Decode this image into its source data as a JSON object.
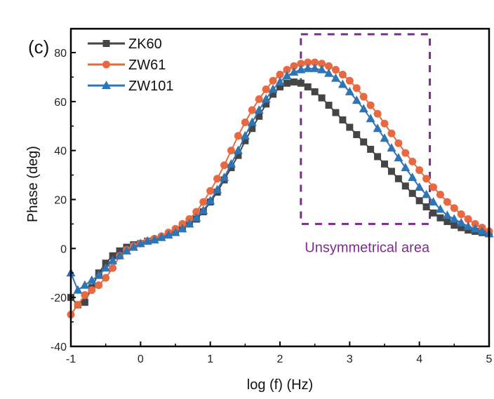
{
  "chart_data": {
    "type": "line",
    "panel_label": "(c)",
    "title": "",
    "xlabel": "log (f) (Hz)",
    "ylabel": "Phase (deg)",
    "xlim": [
      -1,
      5
    ],
    "ylim": [
      -40,
      90
    ],
    "x_ticks": [
      -1,
      0,
      1,
      2,
      3,
      4,
      5
    ],
    "x_tick_labels": [
      "-1",
      "0",
      "1",
      "2",
      "3",
      "4",
      "5"
    ],
    "x_minor_ticks": [
      -0.5,
      0.5,
      1.5,
      2.5,
      3.5,
      4.5
    ],
    "y_ticks": [
      -40,
      -20,
      0,
      20,
      40,
      60,
      80
    ],
    "y_tick_labels": [
      "-40",
      "-20",
      "0",
      "20",
      "40",
      "60",
      "80"
    ],
    "y_minor_ticks": [
      -30,
      -10,
      10,
      30,
      50,
      70
    ],
    "grid": false,
    "legend_position": "top-left",
    "series": [
      {
        "name": "ZK60",
        "color": "#454545",
        "marker": "square",
        "x": [
          -1.0,
          -0.9,
          -0.8,
          -0.7,
          -0.6,
          -0.5,
          -0.4,
          -0.3,
          -0.2,
          -0.1,
          0.0,
          0.1,
          0.2,
          0.3,
          0.4,
          0.5,
          0.6,
          0.7,
          0.8,
          0.9,
          1.0,
          1.1,
          1.2,
          1.3,
          1.4,
          1.5,
          1.6,
          1.7,
          1.8,
          1.9,
          2.0,
          2.1,
          2.2,
          2.3,
          2.4,
          2.5,
          2.6,
          2.7,
          2.8,
          2.9,
          3.0,
          3.1,
          3.2,
          3.3,
          3.4,
          3.5,
          3.6,
          3.7,
          3.8,
          3.9,
          4.0,
          4.1,
          4.2,
          4.3,
          4.4,
          4.5,
          4.6,
          4.7,
          4.8,
          4.9,
          5.0
        ],
        "y": [
          -20,
          -23,
          -22,
          -16,
          -10,
          -6,
          -3,
          -1,
          0.5,
          1.5,
          2,
          3,
          3.5,
          4.5,
          5.5,
          7,
          8.5,
          10,
          12,
          15,
          19,
          23,
          28,
          33,
          38,
          44,
          49,
          54,
          59,
          63,
          66,
          67.5,
          68,
          67.5,
          66,
          64,
          61.5,
          58.5,
          55.5,
          52.5,
          49.5,
          46.5,
          43.5,
          40.5,
          37.5,
          34.5,
          31.5,
          28.5,
          25.5,
          22.5,
          19.5,
          17,
          14.5,
          12.5,
          11,
          9.5,
          8.5,
          7.5,
          7,
          6.5,
          6
        ]
      },
      {
        "name": "ZW61",
        "color": "#E8693F",
        "marker": "circle",
        "x": [
          -1.0,
          -0.9,
          -0.8,
          -0.7,
          -0.6,
          -0.5,
          -0.4,
          -0.3,
          -0.2,
          -0.1,
          0.0,
          0.1,
          0.2,
          0.3,
          0.4,
          0.5,
          0.6,
          0.7,
          0.8,
          0.9,
          1.0,
          1.1,
          1.2,
          1.3,
          1.4,
          1.5,
          1.6,
          1.7,
          1.8,
          1.9,
          2.0,
          2.1,
          2.2,
          2.3,
          2.4,
          2.5,
          2.6,
          2.7,
          2.8,
          2.9,
          3.0,
          3.1,
          3.2,
          3.3,
          3.4,
          3.5,
          3.6,
          3.7,
          3.8,
          3.9,
          4.0,
          4.1,
          4.2,
          4.3,
          4.4,
          4.5,
          4.6,
          4.7,
          4.8,
          4.9,
          5.0
        ],
        "y": [
          -27,
          -23,
          -19,
          -17,
          -15,
          -12,
          -8,
          -3,
          -0.5,
          1,
          2,
          3,
          4,
          5,
          6.5,
          8,
          10,
          12,
          15,
          19,
          23.5,
          28.5,
          34,
          40,
          46,
          51.5,
          56.5,
          61,
          65,
          68.5,
          71,
          73,
          74.5,
          75.5,
          76,
          76,
          75.5,
          74.5,
          73,
          71,
          68.5,
          65.5,
          62,
          58.5,
          55,
          51,
          47,
          43,
          39,
          35.5,
          32,
          28.5,
          25,
          22,
          19,
          16.5,
          14,
          12,
          10,
          8.5,
          7
        ]
      },
      {
        "name": "ZW101",
        "color": "#2E75B6",
        "marker": "triangle",
        "x": [
          -1.0,
          -0.9,
          -0.8,
          -0.7,
          -0.6,
          -0.5,
          -0.4,
          -0.3,
          -0.2,
          -0.1,
          0.0,
          0.1,
          0.2,
          0.3,
          0.4,
          0.5,
          0.6,
          0.7,
          0.8,
          0.9,
          1.0,
          1.1,
          1.2,
          1.3,
          1.4,
          1.5,
          1.6,
          1.7,
          1.8,
          1.9,
          2.0,
          2.1,
          2.2,
          2.3,
          2.4,
          2.5,
          2.6,
          2.7,
          2.8,
          2.9,
          3.0,
          3.1,
          3.2,
          3.3,
          3.4,
          3.5,
          3.6,
          3.7,
          3.8,
          3.9,
          4.0,
          4.1,
          4.2,
          4.3,
          4.4,
          4.5,
          4.6,
          4.7,
          4.8,
          4.9,
          5.0
        ],
        "y": [
          -10,
          -17,
          -15,
          -13,
          -11,
          -8,
          -5,
          -3,
          -1,
          0.5,
          2,
          3,
          3.5,
          4.5,
          5.5,
          6.5,
          8,
          10,
          12.5,
          15.5,
          19.5,
          24,
          29,
          34.5,
          40,
          46,
          51.5,
          56.5,
          61,
          65,
          68,
          70.5,
          72,
          73,
          73.5,
          73.5,
          73,
          71.5,
          69.5,
          67,
          64,
          60.5,
          57,
          53,
          49,
          45,
          41,
          37,
          33,
          29,
          25,
          22,
          19,
          16,
          13.5,
          12,
          10.5,
          9,
          8,
          7,
          6
        ]
      }
    ],
    "annotations": [
      {
        "type": "dashed-rectangle",
        "color": "#7B2D8E",
        "x_range": [
          2.3,
          4.15
        ],
        "y_range": [
          10,
          87.5
        ]
      },
      {
        "type": "text",
        "text": "Unsymmetrical area",
        "color": "#7B2D8E",
        "x": 3.25,
        "y": -1.5
      }
    ]
  }
}
